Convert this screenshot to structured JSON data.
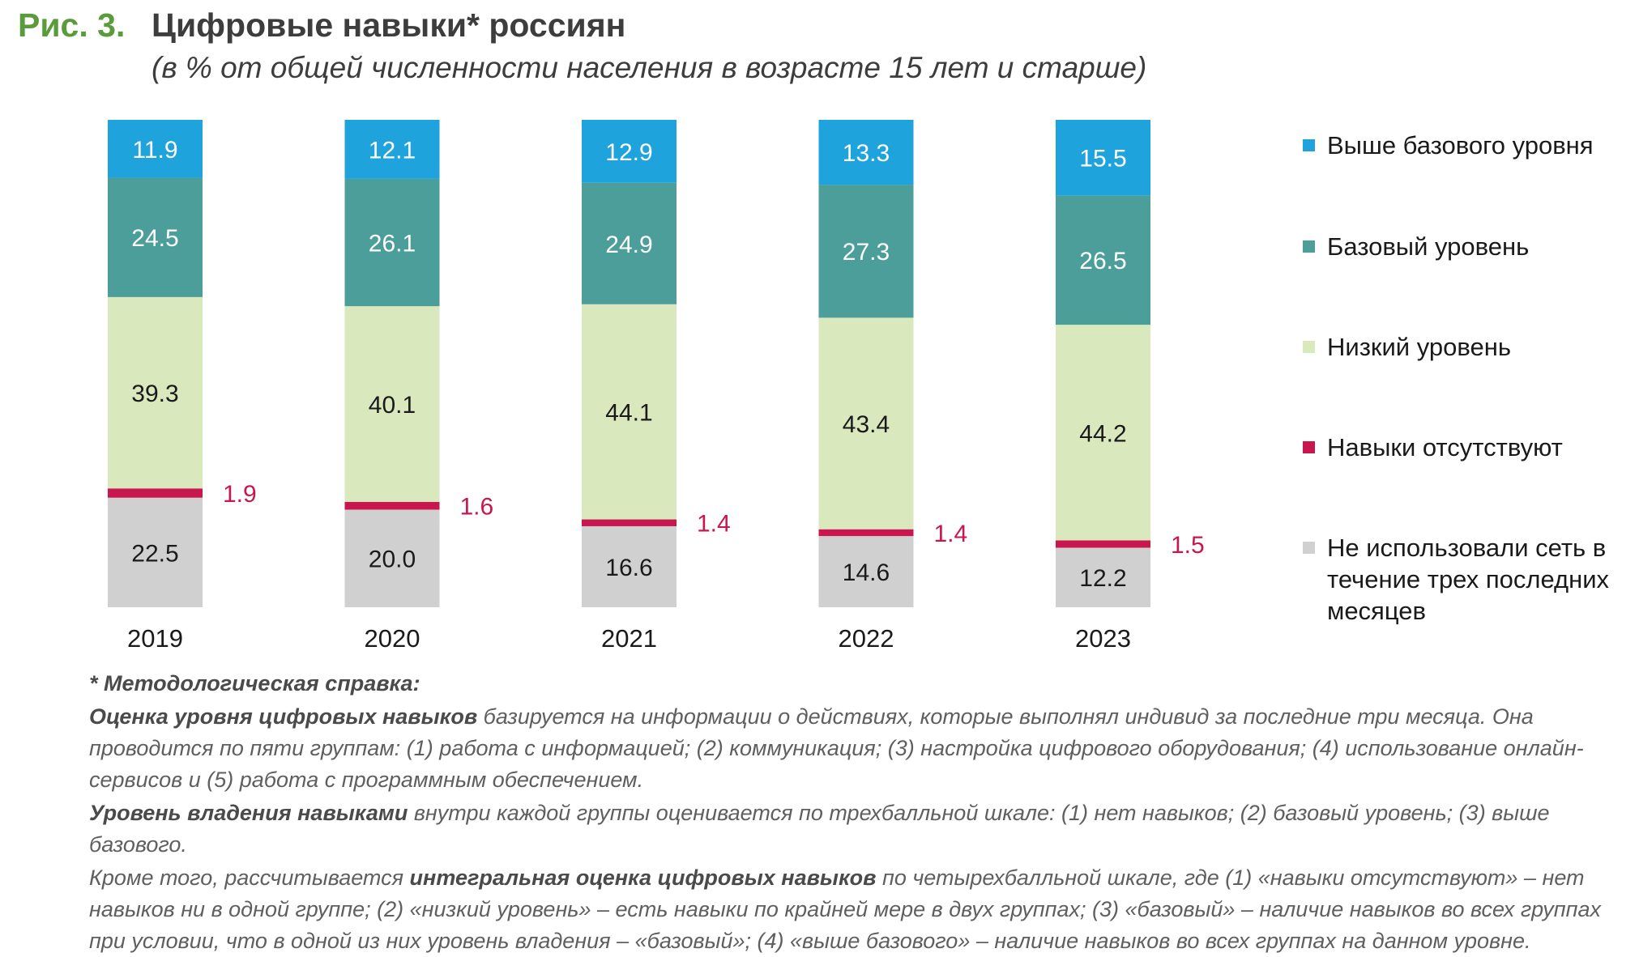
{
  "figure": {
    "number": "Рис. 3.",
    "title": "Цифровые навыки* россиян",
    "subtitle": "(в % от общей численности населения в возрасте 15 лет и старше)"
  },
  "chart_data": {
    "type": "bar",
    "stacked": true,
    "categories": [
      "2019",
      "2020",
      "2021",
      "2022",
      "2023"
    ],
    "series": [
      {
        "name": "Не использовали сеть в течение трех последних месяцев",
        "color": "#d0d0d0",
        "values": [
          22.5,
          20.0,
          16.6,
          14.6,
          12.2
        ],
        "labels": [
          "22.5",
          "20.0",
          "16.6",
          "14.6",
          "12.2"
        ]
      },
      {
        "name": "Навыки отсутствуют",
        "color": "#c8174f",
        "values": [
          1.9,
          1.6,
          1.4,
          1.4,
          1.5
        ],
        "labels": [
          "1.9",
          "1.6",
          "1.4",
          "1.4",
          "1.5"
        ],
        "label_outside": true
      },
      {
        "name": "Низкий уровень",
        "color": "#d9e8bd",
        "values": [
          39.3,
          40.1,
          44.1,
          43.4,
          44.2
        ],
        "labels": [
          "39.3",
          "40.1",
          "44.1",
          "43.4",
          "44.2"
        ]
      },
      {
        "name": "Базовый уровень",
        "color": "#4c9e9a",
        "values": [
          24.5,
          26.1,
          24.9,
          27.3,
          26.5
        ],
        "labels": [
          "24.5",
          "26.1",
          "24.9",
          "27.3",
          "26.5"
        ]
      },
      {
        "name": "Выше базового уровня",
        "color": "#1fa3dc",
        "values": [
          11.9,
          12.1,
          12.9,
          13.3,
          15.5
        ],
        "labels": [
          "11.9",
          "12.1",
          "12.9",
          "13.3",
          "15.5"
        ]
      }
    ],
    "ylim": [
      0,
      100
    ],
    "axes_visible": false,
    "grid": false,
    "legend_position": "right"
  },
  "legend": [
    {
      "label": "Выше базового уровня",
      "color": "#1fa3dc"
    },
    {
      "label": "Базовый уровень",
      "color": "#4c9e9a"
    },
    {
      "label": "Низкий уровень",
      "color": "#d9e8bd"
    },
    {
      "label": "Навыки отсутствуют",
      "color": "#c8174f"
    },
    {
      "label": "Не использовали сеть в течение трех последних месяцев",
      "color": "#d0d0d0"
    }
  ],
  "notes": {
    "heading": "* Методологическая справка:",
    "p1_bold": "Оценка уровня цифровых навыков",
    "p1_text": " базируется на информации о действиях, которые выполнял индивид за последние три месяца. Она проводится по пяти группам: (1) работа с информацией; (2) коммуникация; (3) настройка цифрового оборудования; (4) использование онлайн-сервисов и (5) работа с программным обеспечением.",
    "p2_bold": "Уровень владения навыками",
    "p2_text": " внутри каждой группы оценивается по трехбалльной шкале: (1) нет навыков; (2) базовый уровень; (3) выше базового.",
    "p3_text1": "Кроме того, рассчитывается ",
    "p3_bold": "интегральная оценка цифровых навыков",
    "p3_text2": " по четырехбалльной шкале, где (1) «навыки отсутствуют» – нет навыков ни в одной группе; (2) «низкий уровень» – есть навыки по крайней мере в двух группах; (3) «базовый» – наличие навыков во всех группах при условии, что в одной из них уровень владения – «базовый»; (4) «выше базового» – наличие навыков во всех группах на данном уровне."
  }
}
